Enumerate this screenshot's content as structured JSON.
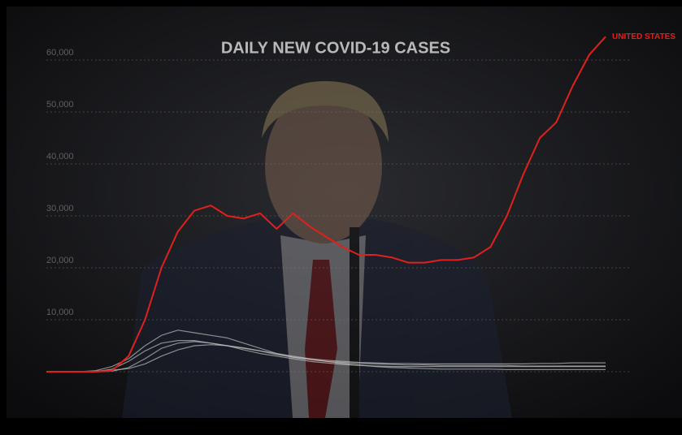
{
  "chart_data": {
    "type": "line",
    "title": "DAILY NEW COVID-19 CASES",
    "ylim": [
      0,
      65000
    ],
    "yticks": [
      {
        "value": 0,
        "label": ""
      },
      {
        "value": 10000,
        "label": "10,000"
      },
      {
        "value": 20000,
        "label": "20,000"
      },
      {
        "value": 30000,
        "label": "30,000"
      },
      {
        "value": 40000,
        "label": "40,000"
      },
      {
        "value": 50000,
        "label": "50,000"
      },
      {
        "value": 60000,
        "label": "60,000"
      }
    ],
    "grid": true,
    "series": [
      {
        "name": "UNITED STATES",
        "color": "#e0201c",
        "values": [
          0,
          0,
          0,
          0,
          200,
          3000,
          10000,
          20000,
          27000,
          31000,
          32000,
          30000,
          29500,
          30500,
          27500,
          30500,
          28000,
          26000,
          24000,
          22500,
          22500,
          22000,
          21000,
          21000,
          21500,
          21500,
          22000,
          24000,
          30000,
          38000,
          45000,
          48000,
          55000,
          61000,
          64500
        ]
      },
      {
        "color": "#bdbdbd",
        "values": [
          0,
          0,
          0,
          200,
          1000,
          2500,
          5000,
          7000,
          8000,
          7500,
          7000,
          6500,
          5500,
          4500,
          3500,
          2800,
          2500,
          2200,
          2000,
          1800,
          1700,
          1600,
          1600,
          1500,
          1500,
          1500,
          1500,
          1500,
          1500,
          1500,
          1600,
          1600,
          1700,
          1700,
          1700
        ]
      },
      {
        "color": "#bdbdbd",
        "values": [
          0,
          0,
          0,
          0,
          500,
          2000,
          4000,
          5500,
          6000,
          6000,
          5500,
          5000,
          4200,
          3500,
          3000,
          2500,
          2000,
          1700,
          1400,
          1200,
          1100,
          1000,
          1000,
          1000,
          1000,
          1000,
          1000,
          1000,
          1000,
          1000,
          1000,
          1000,
          1000,
          1000,
          1000
        ]
      },
      {
        "color": "#bdbdbd",
        "values": [
          0,
          0,
          0,
          0,
          100,
          800,
          2500,
          4500,
          5500,
          5800,
          5500,
          5000,
          4500,
          4000,
          3300,
          2800,
          2300,
          2000,
          1800,
          1600,
          1500,
          1400,
          1300,
          1300,
          1200,
          1200,
          1200,
          1200,
          1200,
          1100,
          1100,
          1100,
          1100,
          1100,
          1100
        ]
      },
      {
        "color": "#bdbdbd",
        "values": [
          0,
          0,
          0,
          100,
          300,
          600,
          1500,
          3000,
          4200,
          5000,
          5200,
          5000,
          4600,
          4000,
          3500,
          3000,
          2500,
          2000,
          1600,
          1300,
          1000,
          800,
          700,
          600,
          500,
          500,
          500,
          500,
          400,
          400,
          400,
          400,
          400,
          400,
          400
        ]
      }
    ]
  }
}
